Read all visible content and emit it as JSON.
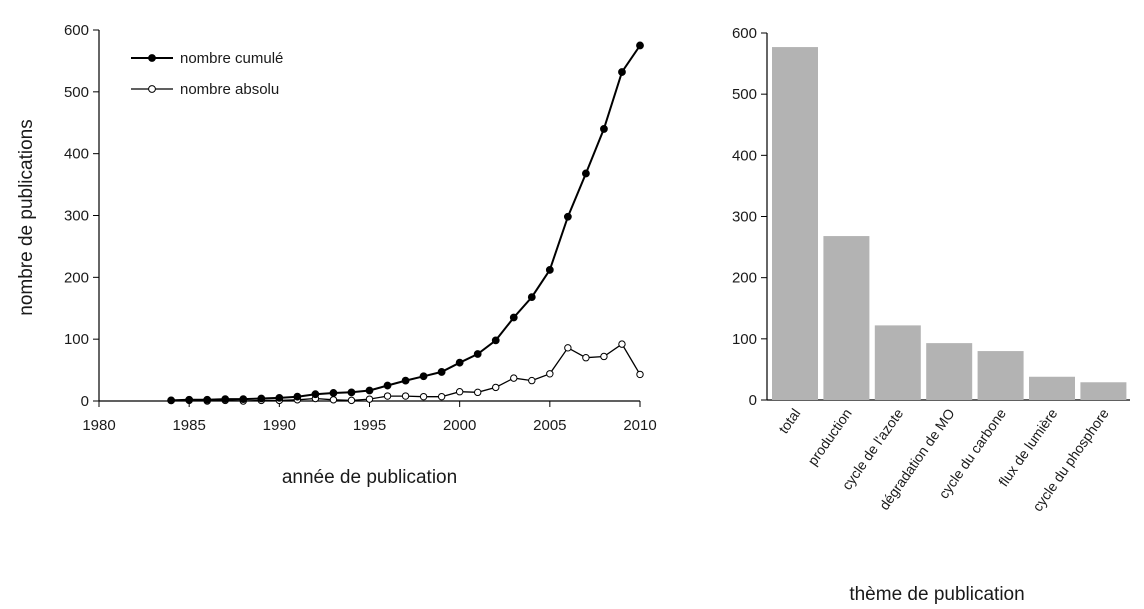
{
  "chart_data": [
    {
      "type": "line",
      "xlabel": "année de publication",
      "ylabel": "nombre de publications",
      "xlim": [
        1980,
        2010
      ],
      "ylim": [
        0,
        600
      ],
      "xticks": [
        "1980",
        "1985",
        "1990",
        "1995",
        "2000",
        "2005",
        "2010"
      ],
      "yticks": [
        "0",
        "100",
        "200",
        "300",
        "400",
        "500",
        "600"
      ],
      "legend": "top-left",
      "grid": false,
      "x": [
        1984,
        1985,
        1986,
        1987,
        1988,
        1989,
        1990,
        1991,
        1992,
        1993,
        1994,
        1995,
        1996,
        1997,
        1998,
        1999,
        2000,
        2001,
        2002,
        2003,
        2004,
        2005,
        2006,
        2007,
        2008,
        2009,
        2010
      ],
      "series": [
        {
          "name": "nombre cumulé",
          "marker": "filled-circle",
          "color": "#000000",
          "values": [
            1,
            2,
            2,
            3,
            3,
            4,
            5,
            7,
            11,
            13,
            14,
            17,
            25,
            33,
            40,
            47,
            62,
            76,
            98,
            135,
            168,
            212,
            298,
            368,
            440,
            532,
            575
          ]
        },
        {
          "name": "nombre absolu",
          "marker": "open-circle",
          "color": "#000000",
          "values": [
            1,
            1,
            0,
            1,
            0,
            1,
            1,
            2,
            4,
            2,
            1,
            3,
            8,
            8,
            7,
            7,
            15,
            14,
            22,
            37,
            33,
            44,
            86,
            70,
            72,
            92,
            43
          ]
        }
      ]
    },
    {
      "type": "bar",
      "xlabel": "thème de publication",
      "ylabel": "",
      "ylim": [
        0,
        600
      ],
      "yticks": [
        "0",
        "100",
        "200",
        "300",
        "400",
        "500",
        "600"
      ],
      "grid": false,
      "bar_color": "#b3b3b3",
      "categories": [
        "total",
        "production",
        "cycle de l'azote",
        "dégradation de MO",
        "cycle du carbone",
        "flux de lumière",
        "cycle du phosphore"
      ],
      "values": [
        577,
        268,
        122,
        93,
        80,
        38,
        29
      ]
    }
  ]
}
